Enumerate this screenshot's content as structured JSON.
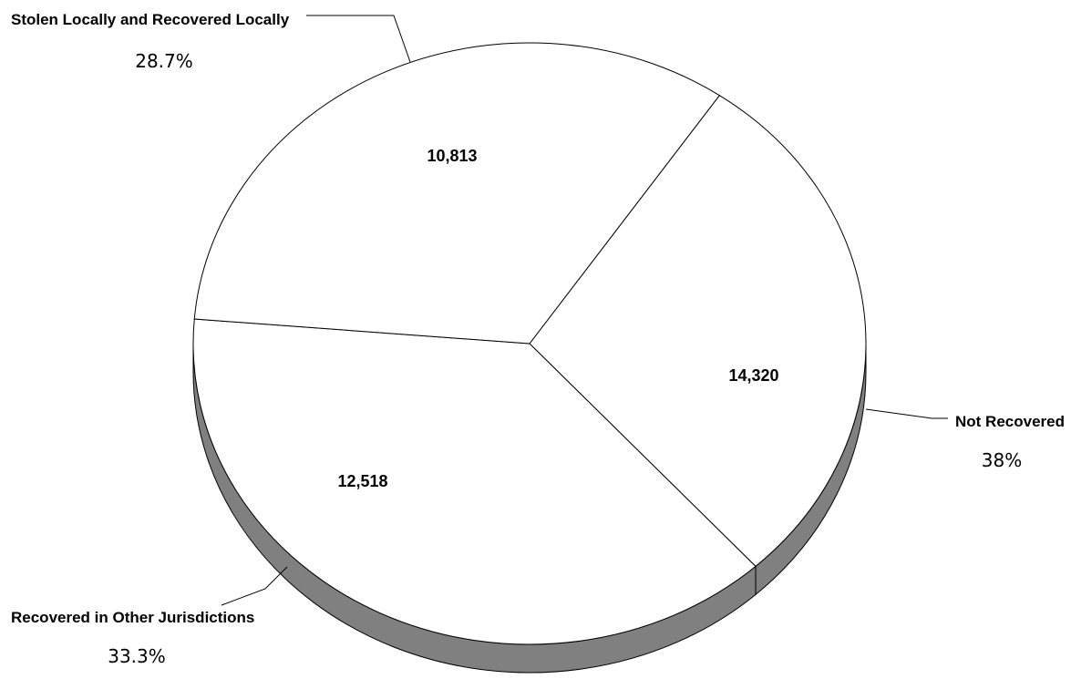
{
  "chart_data": {
    "type": "pie",
    "style": "3d",
    "title": "",
    "slices": [
      {
        "label": "Stolen Locally and Recovered Locally",
        "value": 10813,
        "value_label": "10,813",
        "percent_label": "28.7%"
      },
      {
        "label": "Not Recovered",
        "value": 14320,
        "value_label": "14,320",
        "percent_label": "38%"
      },
      {
        "label": "Recovered in Other Jurisdictions",
        "value": 12518,
        "value_label": "12,518",
        "percent_label": "33.3%"
      }
    ],
    "colors": {
      "face": "#ffffff",
      "side": "#808080",
      "outline": "#000000"
    }
  }
}
